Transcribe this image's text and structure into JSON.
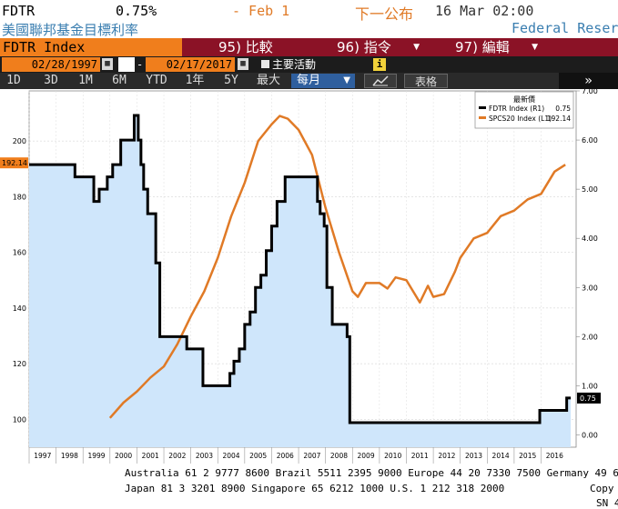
{
  "header": {
    "ticker": "FDTR",
    "value": "0.75%",
    "change": "- Feb 1",
    "next_label": "下一公布",
    "next_time": "16 Mar 02:00",
    "description": "美國聯邦基金目標利率",
    "source": "Federal Reser"
  },
  "menu": {
    "index_label": "FDTR Index",
    "compare": "95) 比較",
    "actions": "96) 指令",
    "edit": "97) 編輯"
  },
  "datebar": {
    "start_date": "02/28/1997",
    "dash": "-",
    "end_date": "02/17/2017",
    "main_activity": "主要活動"
  },
  "range": {
    "buttons": [
      "1D",
      "3D",
      "1M",
      "6M",
      "YTD",
      "1年",
      "5Y",
      "最大"
    ],
    "period_select": "每月",
    "table_label": "表格",
    "next_icon": "»"
  },
  "colors": {
    "fdtr_line": "#000000",
    "fdtr_fill": "#cfe6fb",
    "spcs_line": "#e07a26",
    "accent_orange": "#f07e1c",
    "menubar": "#8b1226"
  },
  "chart_data": {
    "type": "line",
    "legend": {
      "title": "最新價",
      "entries": [
        {
          "name": "FDTR Index (R1)",
          "value": "0.75"
        },
        {
          "name": "SPCS20 Index (L1)",
          "value": "192.14"
        }
      ],
      "position": "top-right"
    },
    "x_ticks": [
      "1997",
      "1998",
      "1999",
      "2000",
      "2001",
      "2002",
      "2003",
      "2004",
      "2005",
      "2006",
      "2007",
      "2008",
      "2009",
      "2010",
      "2011",
      "2012",
      "2013",
      "2014",
      "2015",
      "2016"
    ],
    "left_axis": {
      "ticks": [
        "100",
        "120",
        "140",
        "160",
        "180",
        "200"
      ],
      "ylim": [
        90,
        218
      ]
    },
    "right_axis": {
      "ticks": [
        "0.00",
        "1.00",
        "2.00",
        "3.00",
        "4.00",
        "5.00",
        "6.00",
        "7.00"
      ],
      "ylim": [
        -0.25,
        7.0
      ]
    },
    "last_value_tags": {
      "left": "192.14",
      "right": "0.75"
    },
    "series": [
      {
        "name": "FDTR Index (R1)",
        "axis": "right",
        "style": "step-area",
        "x": [
          1997.0,
          1998.7,
          1999.4,
          1999.6,
          1999.9,
          2000.1,
          2000.4,
          2000.9,
          2001.05,
          2001.15,
          2001.25,
          2001.4,
          2001.7,
          2001.85,
          2002.85,
          2003.45,
          2004.45,
          2004.6,
          2004.8,
          2005.0,
          2005.2,
          2005.4,
          2005.6,
          2005.8,
          2006.0,
          2006.2,
          2006.5,
          2007.7,
          2007.8,
          2007.95,
          2008.05,
          2008.25,
          2008.8,
          2008.9,
          2015.95,
          2016.95,
          2017.1
        ],
        "values": [
          5.5,
          5.25,
          4.75,
          5.0,
          5.25,
          5.5,
          6.0,
          6.5,
          6.0,
          5.5,
          5.0,
          4.5,
          3.5,
          2.0,
          1.75,
          1.0,
          1.25,
          1.5,
          1.75,
          2.25,
          2.5,
          3.0,
          3.25,
          3.75,
          4.25,
          4.75,
          5.25,
          4.75,
          4.5,
          4.25,
          3.0,
          2.25,
          2.0,
          0.25,
          0.5,
          0.75,
          0.75
        ]
      },
      {
        "name": "SPCS20 Index (L1)",
        "axis": "left",
        "style": "line",
        "x": [
          2000.0,
          2000.5,
          2001.0,
          2001.5,
          2002.0,
          2002.5,
          2003.0,
          2003.5,
          2004.0,
          2004.5,
          2005.0,
          2005.5,
          2006.0,
          2006.3,
          2006.6,
          2007.0,
          2007.5,
          2008.0,
          2008.5,
          2009.0,
          2009.2,
          2009.5,
          2010.0,
          2010.3,
          2010.6,
          2011.0,
          2011.5,
          2011.8,
          2012.0,
          2012.4,
          2012.8,
          2013.0,
          2013.5,
          2014.0,
          2014.5,
          2015.0,
          2015.5,
          2016.0,
          2016.5,
          2016.9
        ],
        "values": [
          100.5,
          106,
          110,
          115,
          119,
          127,
          137,
          146,
          158,
          173,
          185,
          200,
          206,
          209,
          208,
          204,
          195,
          176,
          160,
          146,
          144,
          149,
          149,
          147,
          151,
          150,
          142,
          148,
          144,
          145,
          153,
          158,
          165,
          167,
          173,
          175,
          179,
          181,
          189,
          191.5
        ]
      }
    ]
  },
  "footer": {
    "line1": "Australia 61 2 9777 8600 Brazil 5511 2395 9000 Europe 44 20 7330 7500 Germany 49 69 9",
    "line2": "Japan 81 3 3201 8900        Singapore 65 6212 1000        U.S. 1 212 318 2000",
    "copy": "Copy",
    "sn": "SN 4"
  }
}
